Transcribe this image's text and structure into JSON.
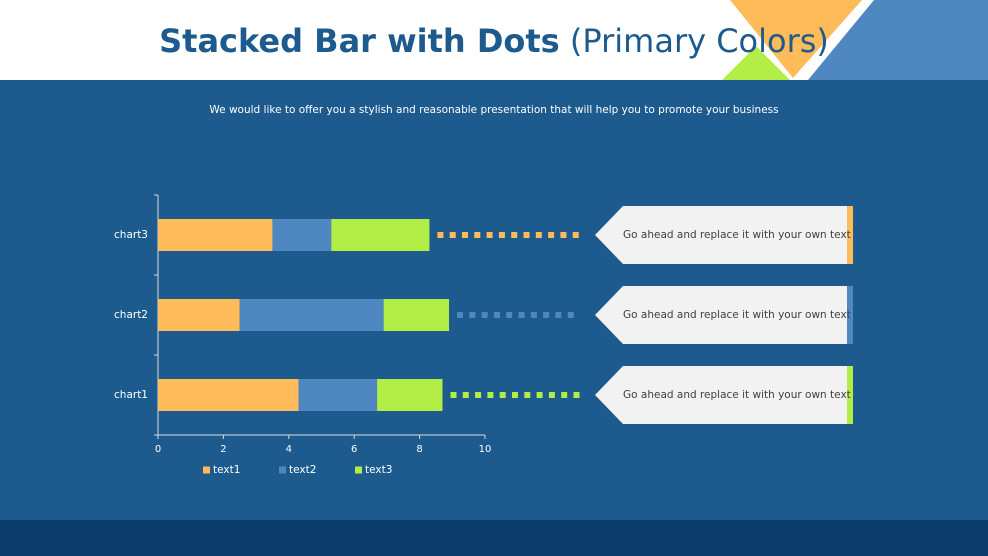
{
  "chart_data": {
    "type": "stacked_bar_horizontal",
    "title": "Stacked Bar with Dots",
    "title_note": "(Primary Colors)",
    "subtitle": "We would like to offer you a stylish and reasonable presentation that will help you to promote your business",
    "categories": [
      "chart1",
      "chart2",
      "chart3"
    ],
    "series": [
      {
        "name": "text1",
        "color": "#fdbb5a",
        "values": [
          4.3,
          2.5,
          3.5
        ]
      },
      {
        "name": "text2",
        "color": "#4f88c0",
        "values": [
          2.4,
          4.4,
          1.8
        ]
      },
      {
        "name": "text3",
        "color": "#b2ee45",
        "values": [
          2.0,
          2.0,
          3.0
        ]
      }
    ],
    "xlim": [
      0,
      10
    ],
    "xticks": [
      0,
      2,
      4,
      6,
      8,
      10
    ],
    "legend": "bottom",
    "annotations": [
      {
        "text": "Go ahead and replace it with your own text",
        "color": "#b2ee45"
      },
      {
        "text": "Go ahead and replace it with your own text",
        "color": "#4f88c0"
      },
      {
        "text": "Go ahead and replace it with your own text",
        "color": "#fdbb5a"
      }
    ]
  }
}
